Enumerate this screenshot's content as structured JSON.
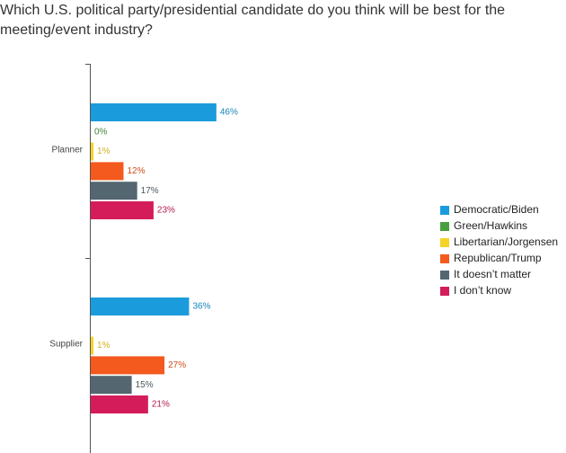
{
  "chart_data": {
    "type": "bar",
    "orientation": "horizontal",
    "title": "Which U.S. political party/presidential candidate do you think will be best for the meeting/event industry?",
    "categories": [
      "Planner",
      "Supplier"
    ],
    "xlim": [
      0,
      100
    ],
    "series": [
      {
        "name": "Democratic/Biden",
        "color": "#1a9bdb",
        "values": [
          46,
          36
        ],
        "value_labels": [
          "46%",
          "36%"
        ]
      },
      {
        "name": "Green/Hawkins",
        "color": "#4a9e3f",
        "values": [
          0,
          null
        ],
        "value_labels": [
          "0%",
          null
        ]
      },
      {
        "name": "Libertarian/Jorgensen",
        "color": "#f5d328",
        "values": [
          1,
          1
        ],
        "value_labels": [
          "1%",
          "1%"
        ]
      },
      {
        "name": "Republican/Trump",
        "color": "#f4591e",
        "values": [
          12,
          27
        ],
        "value_labels": [
          "12%",
          "27%"
        ]
      },
      {
        "name": "It doesn’t matter",
        "color": "#546670",
        "values": [
          17,
          15
        ],
        "value_labels": [
          "17%",
          "15%"
        ]
      },
      {
        "name": "I don’t know",
        "color": "#d41c5b",
        "values": [
          23,
          21
        ],
        "value_labels": [
          "23%",
          "21%"
        ]
      }
    ],
    "legend": "right"
  }
}
